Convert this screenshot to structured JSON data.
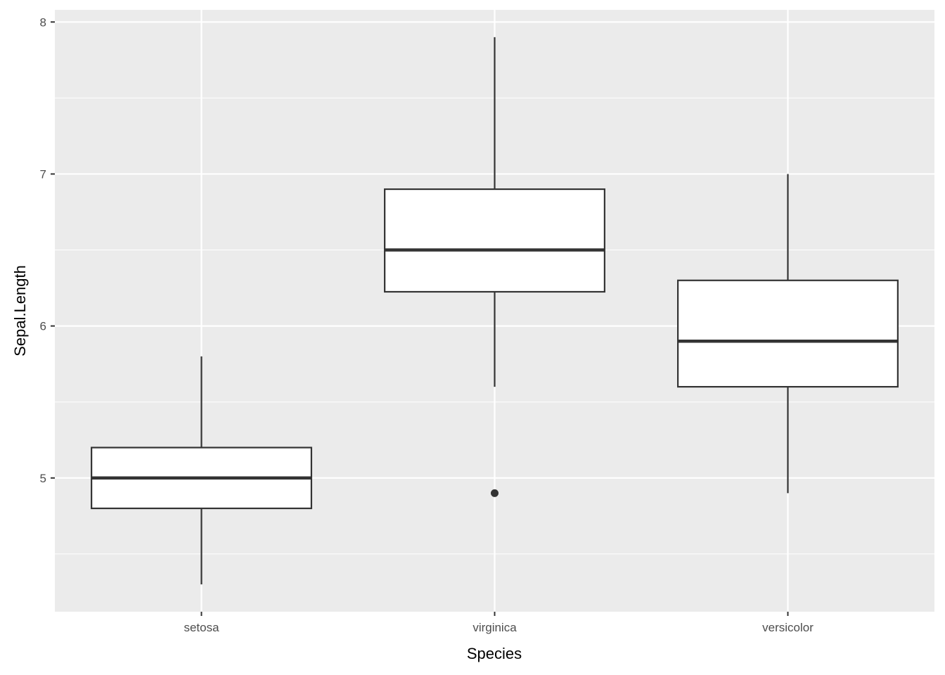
{
  "chart_data": {
    "type": "boxplot",
    "title": "",
    "xlabel": "Species",
    "ylabel": "Sepal.Length",
    "categories": [
      "setosa",
      "virginica",
      "versicolor"
    ],
    "boxes": [
      {
        "category": "setosa",
        "whisker_low": 4.3,
        "q1": 4.8,
        "median": 5.0,
        "q3": 5.2,
        "whisker_high": 5.8,
        "outliers": []
      },
      {
        "category": "virginica",
        "whisker_low": 5.6,
        "q1": 6.225,
        "median": 6.5,
        "q3": 6.9,
        "whisker_high": 7.9,
        "outliers": [
          4.9
        ]
      },
      {
        "category": "versicolor",
        "whisker_low": 4.9,
        "q1": 5.6,
        "median": 5.9,
        "q3": 6.3,
        "whisker_high": 7.0,
        "outliers": []
      }
    ],
    "ylim": [
      4.12,
      8.08
    ],
    "y_ticks": [
      5,
      6,
      7,
      8
    ],
    "y_tick_labels": [
      "5",
      "6",
      "7",
      "8"
    ],
    "y_minor_gridlines": [
      4.5,
      5.5,
      6.5,
      7.5
    ],
    "grid": true,
    "legend": "none",
    "colors": {
      "panel_background": "#ebebeb",
      "gridline": "#ffffff",
      "box_fill": "#ffffff",
      "box_stroke": "#333333",
      "tick_label": "#4d4d4d",
      "axis_title": "#000000"
    }
  }
}
